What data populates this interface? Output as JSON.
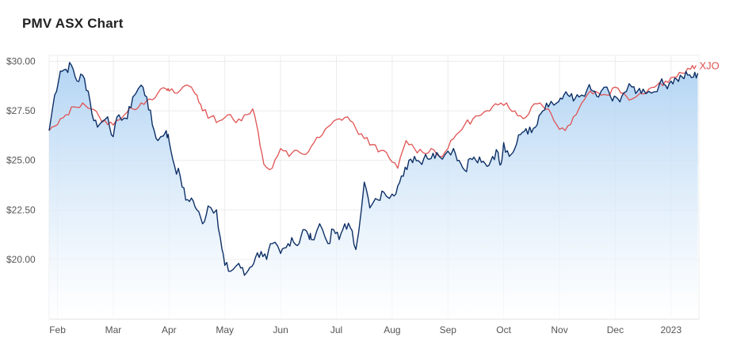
{
  "title": "PMV ASX Chart",
  "colors": {
    "pmv_line": "#0d2f66",
    "pmv_fill_top": "#a9cff2",
    "pmv_fill_bottom": "#ffffff",
    "xjo_line": "#e05252",
    "grid": "#ececec"
  },
  "chart_data": {
    "type": "area",
    "title": "PMV ASX Chart",
    "xlabel": "",
    "ylabel": "",
    "ylim": [
      17.0,
      30.3
    ],
    "grid": true,
    "x_ticks": [
      "Feb",
      "Mar",
      "Apr",
      "May",
      "Jun",
      "Jul",
      "Aug",
      "Sep",
      "Oct",
      "Nov",
      "Dec",
      "2023"
    ],
    "y_ticks": [
      "$30.00",
      "$27.50",
      "$25.00",
      "$22.50",
      "$20.00"
    ],
    "y_tick_values": [
      30,
      27.5,
      25,
      22.5,
      20
    ],
    "x_tick_positions": [
      0.5,
      1.5,
      2.5,
      3.5,
      4.5,
      5.5,
      6.5,
      7.5,
      8.5,
      9.5,
      10.5,
      11.5
    ],
    "x_range": [
      0.35,
      12.0
    ],
    "series": [
      {
        "name": "",
        "x": [
          0.35,
          0.45,
          0.55,
          0.65,
          0.75,
          0.85,
          0.95,
          1.05,
          1.15,
          1.25,
          1.4,
          1.5,
          1.6,
          1.75,
          1.85,
          2.0,
          2.1,
          2.2,
          2.3,
          2.45,
          2.5,
          2.6,
          2.7,
          2.8,
          2.9,
          3.0,
          3.1,
          3.2,
          3.35,
          3.45,
          3.5,
          3.6,
          3.75,
          3.85,
          3.95,
          4.05,
          4.15,
          4.25,
          4.35,
          4.5,
          4.6,
          4.7,
          4.8,
          4.9,
          5.0,
          5.05,
          5.2,
          5.35,
          5.45,
          5.55,
          5.65,
          5.75,
          5.85,
          6.0,
          6.1,
          6.25,
          6.35,
          6.5,
          6.6,
          6.7,
          6.8,
          6.9,
          7.0,
          7.1,
          7.2,
          7.3,
          7.45,
          7.6,
          7.7,
          7.8,
          7.9,
          8.0,
          8.1,
          8.2,
          8.3,
          8.4,
          8.45,
          8.5,
          8.6,
          8.7,
          8.8,
          8.9,
          9.0,
          9.1,
          9.2,
          9.3,
          9.45,
          9.55,
          9.65,
          9.75,
          9.85,
          10.0,
          10.1,
          10.2,
          10.35,
          10.45,
          10.55,
          10.65,
          10.8,
          10.9,
          11.0,
          11.15,
          11.3,
          11.4,
          11.5,
          11.6,
          11.7,
          11.8,
          11.9,
          11.98
        ],
        "values": [
          26.5,
          28.3,
          29.5,
          29.6,
          29.8,
          29.0,
          29.3,
          28.5,
          27.0,
          26.8,
          27.2,
          26.2,
          27.3,
          27.1,
          28.2,
          28.8,
          28.2,
          26.8,
          26.0,
          26.5,
          26.0,
          24.7,
          24.2,
          23.0,
          23.1,
          22.5,
          21.8,
          22.7,
          22.5,
          20.5,
          19.7,
          19.4,
          19.8,
          19.2,
          19.6,
          20.1,
          20.4,
          20.0,
          20.8,
          20.3,
          20.6,
          21.1,
          20.7,
          21.5,
          21.2,
          21.0,
          21.8,
          20.8,
          21.5,
          21.0,
          21.8,
          21.6,
          20.5,
          23.9,
          22.6,
          23.0,
          23.4,
          23.3,
          23.7,
          24.2,
          25.0,
          25.2,
          24.9,
          25.3,
          25.1,
          25.4,
          25.3,
          25.6,
          25.0,
          24.5,
          25.1,
          25.0,
          24.9,
          24.7,
          25.2,
          25.4,
          24.8,
          25.9,
          25.2,
          25.6,
          26.3,
          26.6,
          26.4,
          26.8,
          27.5,
          27.7,
          27.9,
          28.1,
          28.3,
          28.0,
          28.2,
          28.6,
          28.5,
          28.2,
          28.7,
          28.0,
          28.1,
          28.4,
          28.7,
          28.5,
          28.6,
          28.4,
          28.9,
          28.8,
          29.0,
          29.1,
          29.2,
          29.3,
          29.2,
          29.4
        ]
      },
      {
        "name": "XJO",
        "x": [
          0.35,
          0.5,
          0.65,
          0.8,
          0.95,
          1.1,
          1.25,
          1.4,
          1.55,
          1.7,
          1.85,
          2.0,
          2.15,
          2.3,
          2.45,
          2.5,
          2.65,
          2.8,
          2.9,
          3.0,
          3.1,
          3.25,
          3.4,
          3.55,
          3.7,
          3.85,
          4.0,
          4.1,
          4.2,
          4.35,
          4.5,
          4.65,
          4.8,
          4.95,
          5.1,
          5.25,
          5.4,
          5.55,
          5.7,
          5.85,
          6.0,
          6.15,
          6.3,
          6.45,
          6.6,
          6.75,
          6.9,
          7.05,
          7.2,
          7.35,
          7.5,
          7.65,
          7.8,
          7.95,
          8.1,
          8.25,
          8.4,
          8.55,
          8.7,
          8.85,
          9.0,
          9.15,
          9.3,
          9.45,
          9.6,
          9.75,
          9.9,
          10.05,
          10.2,
          10.35,
          10.5,
          10.65,
          10.8,
          10.95,
          11.1,
          11.25,
          11.4,
          11.55,
          11.7,
          11.85,
          11.95
        ],
        "values": [
          26.5,
          26.8,
          27.3,
          27.7,
          27.9,
          27.6,
          27.2,
          26.8,
          27.0,
          27.3,
          27.6,
          27.9,
          28.1,
          28.4,
          28.6,
          28.5,
          28.4,
          28.8,
          28.7,
          28.3,
          27.5,
          27.2,
          27.0,
          27.3,
          26.9,
          27.3,
          27.6,
          26.4,
          24.8,
          24.6,
          25.6,
          25.2,
          25.5,
          25.3,
          25.9,
          26.3,
          26.8,
          27.1,
          27.2,
          26.6,
          26.1,
          25.8,
          25.5,
          25.1,
          24.6,
          26.0,
          25.6,
          25.4,
          25.6,
          25.2,
          25.6,
          26.3,
          26.8,
          27.1,
          27.3,
          27.5,
          27.8,
          27.9,
          27.5,
          27.1,
          27.7,
          27.9,
          27.6,
          26.8,
          26.5,
          27.2,
          27.9,
          28.5,
          28.4,
          28.3,
          28.7,
          28.4,
          28.1,
          28.4,
          28.6,
          28.8,
          29.0,
          29.2,
          29.4,
          29.6,
          29.8
        ]
      }
    ]
  }
}
